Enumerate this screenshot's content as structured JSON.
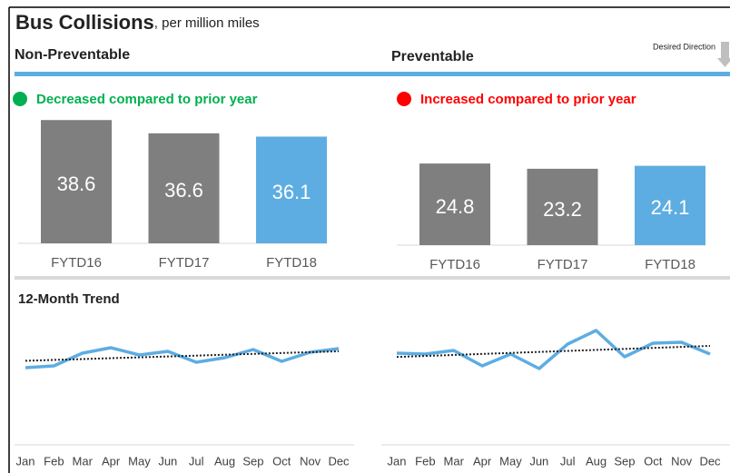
{
  "header": {
    "title": "Bus Collisions",
    "subtitle": ", per million miles",
    "desired_direction": "Desired Direction"
  },
  "chart_data": [
    {
      "type": "bar",
      "title": "Non-Preventable",
      "status": "Decreased compared to prior year",
      "status_color": "#00b050",
      "categories": [
        "FYTD16",
        "FYTD17",
        "FYTD18"
      ],
      "values": [
        38.6,
        36.6,
        36.1
      ],
      "colors": [
        "#7f7f7f",
        "#7f7f7f",
        "#5dade2"
      ],
      "ylim": [
        20,
        40
      ]
    },
    {
      "type": "bar",
      "title": "Preventable",
      "status": "Increased compared to prior year",
      "status_color": "#ff0000",
      "categories": [
        "FYTD16",
        "FYTD17",
        "FYTD18"
      ],
      "values": [
        24.8,
        23.2,
        24.1
      ],
      "colors": [
        "#7f7f7f",
        "#7f7f7f",
        "#5dade2"
      ],
      "ylim": [
        0,
        40
      ]
    },
    {
      "type": "line",
      "title": "12-Month Trend",
      "categories": [
        "Jan",
        "Feb",
        "Mar",
        "Apr",
        "May",
        "Jun",
        "Jul",
        "Aug",
        "Sep",
        "Oct",
        "Nov",
        "Dec"
      ],
      "values": [
        15,
        17,
        31,
        37,
        29,
        33,
        21,
        26,
        35,
        22,
        32,
        36
      ],
      "color": "#5dade2",
      "trendline": true
    },
    {
      "type": "line",
      "categories": [
        "Jan",
        "Feb",
        "Mar",
        "Apr",
        "May",
        "Jun",
        "Jul",
        "Aug",
        "Sep",
        "Oct",
        "Nov",
        "Dec"
      ],
      "values": [
        31,
        30,
        34,
        17,
        30,
        14,
        41,
        56,
        27,
        42,
        43,
        30
      ],
      "color": "#5dade2",
      "trendline": true
    }
  ]
}
